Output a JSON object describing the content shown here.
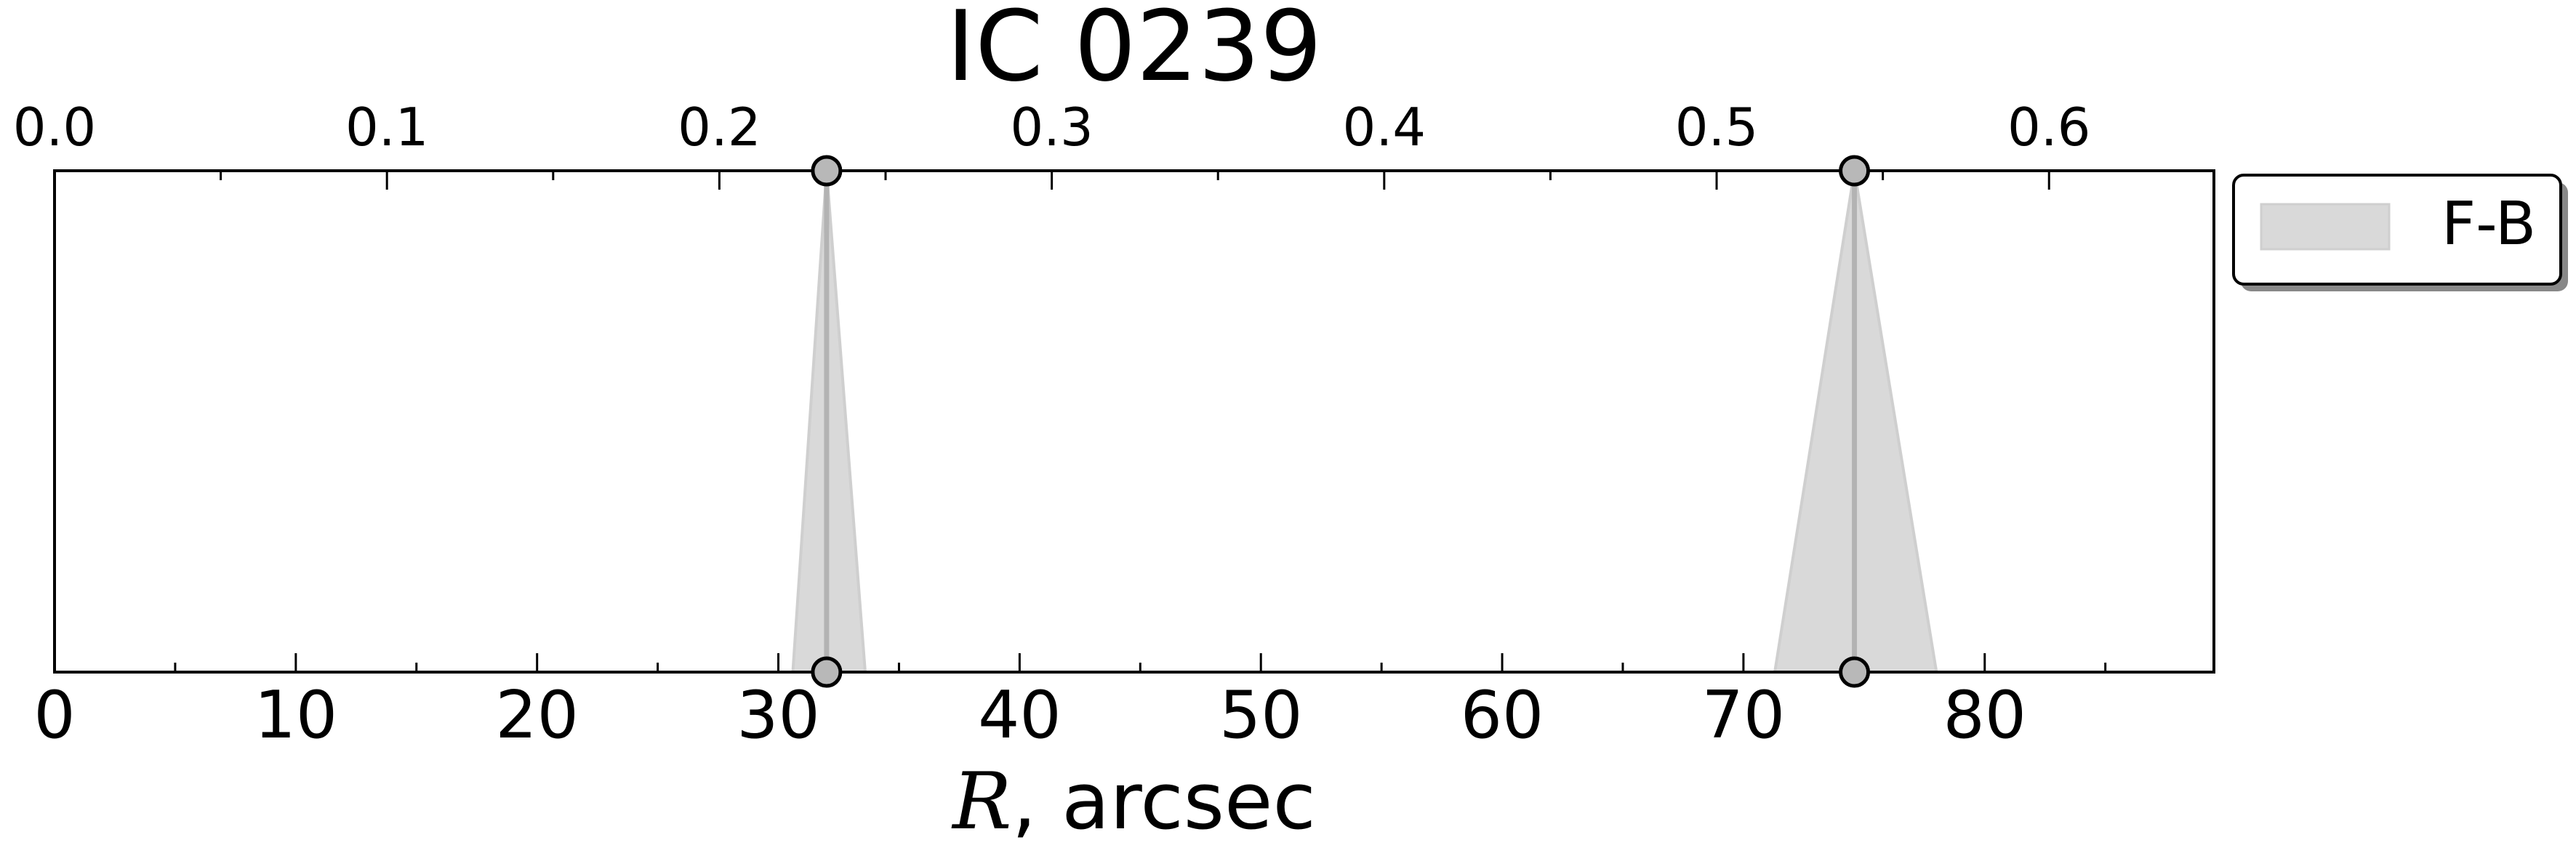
{
  "chart_data": {
    "type": "area",
    "title": "IC 0239",
    "xlabel_symbol": "R",
    "xlabel_unit": ", arcsec",
    "xlim": [
      0,
      89.5
    ],
    "xticks": [
      0,
      10,
      20,
      30,
      40,
      50,
      60,
      70,
      80
    ],
    "x_minor_step": 5,
    "x2lim": [
      0,
      0.6496
    ],
    "x2ticks": [
      "0.0",
      "0.1",
      "0.2",
      "0.3",
      "0.4",
      "0.5",
      "0.6"
    ],
    "x2_minor_step": 0.05,
    "grid": false,
    "legend": {
      "position": "outside-top-right",
      "entries": [
        "F-B"
      ]
    },
    "series": [
      {
        "name": "F-B",
        "color": "#d9d9d9",
        "edge_color": "#cfcfcf",
        "line_color": "#b3b3b3",
        "features": [
          {
            "center": 32.0,
            "base_left": 30.6,
            "base_right": 33.6
          },
          {
            "center": 74.6,
            "base_left": 71.3,
            "base_right": 78.0
          }
        ]
      }
    ],
    "marker_color": "#b8b8b8"
  }
}
